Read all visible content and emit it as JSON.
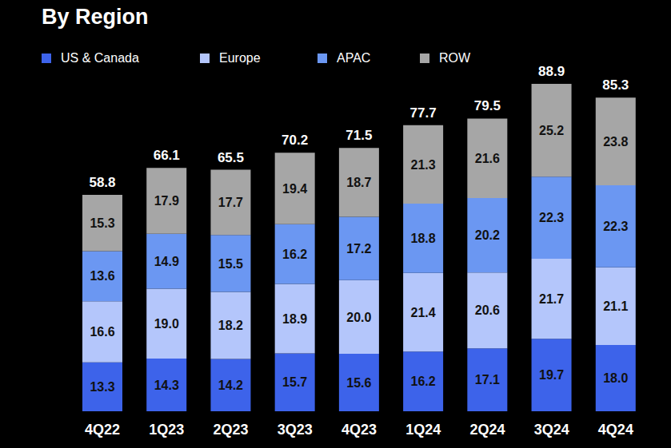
{
  "chart_data": {
    "type": "bar",
    "title": "By Region",
    "categories": [
      "4Q22",
      "1Q23",
      "2Q23",
      "3Q23",
      "4Q23",
      "1Q24",
      "2Q24",
      "3Q24",
      "4Q24"
    ],
    "series": [
      {
        "name": "US & Canada",
        "color": "#3d63ea",
        "values": [
          13.3,
          14.3,
          14.2,
          15.7,
          15.6,
          16.2,
          17.1,
          19.7,
          18.0
        ]
      },
      {
        "name": "Europe",
        "color": "#b4c6fb",
        "values": [
          16.6,
          19.0,
          18.2,
          18.9,
          20.0,
          21.4,
          20.6,
          21.7,
          21.1
        ]
      },
      {
        "name": "APAC",
        "color": "#6b97f2",
        "values": [
          13.6,
          14.9,
          15.5,
          16.2,
          17.2,
          18.8,
          20.2,
          22.3,
          22.3
        ]
      },
      {
        "name": "ROW",
        "color": "#a6a6a6",
        "values": [
          15.3,
          17.9,
          17.7,
          19.4,
          18.7,
          21.3,
          21.6,
          25.2,
          23.8
        ]
      }
    ],
    "totals": [
      58.8,
      66.1,
      65.5,
      70.2,
      71.5,
      77.7,
      79.5,
      88.9,
      85.3
    ],
    "ylim": [
      0,
      95
    ],
    "stacked": true,
    "data_labels": true,
    "legend": "top",
    "tick_labels": "x",
    "grid": false
  }
}
